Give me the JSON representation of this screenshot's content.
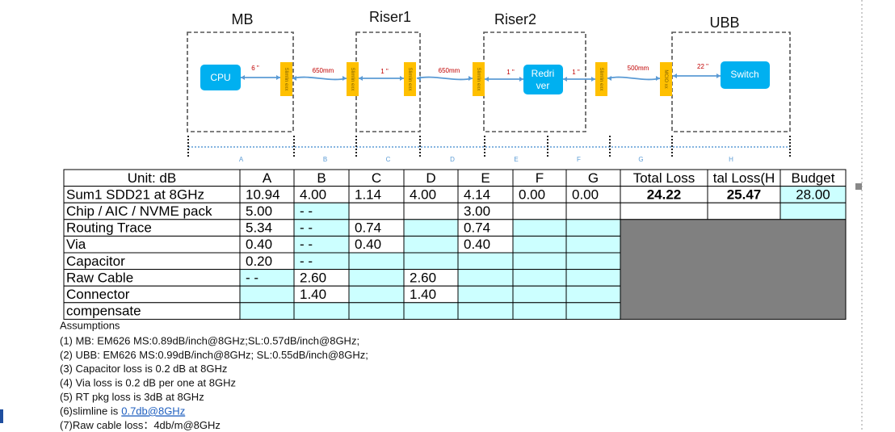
{
  "diagram": {
    "groups": [
      "MB",
      "Riser1",
      "Riser2",
      "UBB"
    ],
    "nodes": {
      "cpu": "CPU",
      "redriver": [
        "Redri",
        "ver"
      ],
      "switch": "Switch"
    },
    "connectors": [
      "Slimlin exx",
      "Slimlin exx",
      "Slimlin exx",
      "Slimlin exx",
      "Slimlin exx",
      "MCIO xx"
    ],
    "segments": [
      "6 \"",
      "650mm",
      "1 \"",
      "650mm",
      "1 \"",
      "1 \"",
      "500mm",
      "22 \""
    ],
    "dimensions": [
      "A",
      "B",
      "C",
      "D",
      "E",
      "F",
      "G",
      "H"
    ]
  },
  "table": {
    "header": [
      "Unit: dB",
      "A",
      "B",
      "C",
      "D",
      "E",
      "F",
      "G",
      "Total Loss",
      "tal Loss(H",
      "Budget"
    ],
    "rows": [
      [
        "Sum1 SDD21 at 8GHz",
        "10.94",
        "4.00",
        "1.14",
        "4.00",
        "4.14",
        "0.00",
        "0.00",
        "24.22",
        "25.47",
        "28.00"
      ],
      [
        "Chip / AIC / NVME pack",
        "5.00",
        "- -",
        null,
        null,
        "3.00",
        null,
        null,
        null,
        null,
        null
      ],
      [
        "Routing Trace",
        "5.34",
        "- -",
        "0.74",
        null,
        "0.74",
        null,
        null,
        null,
        null,
        null
      ],
      [
        "Via",
        "0.40",
        "- -",
        "0.40",
        null,
        "0.40",
        null,
        null,
        null,
        null,
        null
      ],
      [
        "Capacitor",
        "0.20",
        "- -",
        null,
        null,
        null,
        null,
        null,
        null,
        null,
        null
      ],
      [
        "Raw Cable",
        "- -",
        "2.60",
        null,
        "2.60",
        null,
        null,
        null,
        null,
        null,
        null
      ],
      [
        "Connector",
        null,
        "1.40",
        null,
        "1.40",
        null,
        null,
        null,
        null,
        null,
        null
      ],
      [
        "compensate",
        null,
        null,
        null,
        null,
        null,
        null,
        null,
        null,
        null,
        null
      ]
    ]
  },
  "assumptions": {
    "title": "Assumptions",
    "items": [
      {
        "text": "(1) MB: EM626  MS:0.89dB/inch@8GHz;SL:0.57dB/inch@8GHz;"
      },
      {
        "text": "(2) UBB: EM626 MS:0.99dB/inch@8GHz; SL:0.55dB/inch@8GHz;"
      },
      {
        "text": "(3) Capacitor loss is 0.2 dB at 8GHz"
      },
      {
        "text": "(4) Via loss is 0.2 dB per one at 8GHz"
      },
      {
        "text": "(5) RT pkg loss is 3dB at 8GHz"
      },
      {
        "text": "(6)slimline is",
        "link": "0.7db@8GHz"
      },
      {
        "text": "(7)Raw cable loss：4db/m@8GHz"
      }
    ]
  }
}
